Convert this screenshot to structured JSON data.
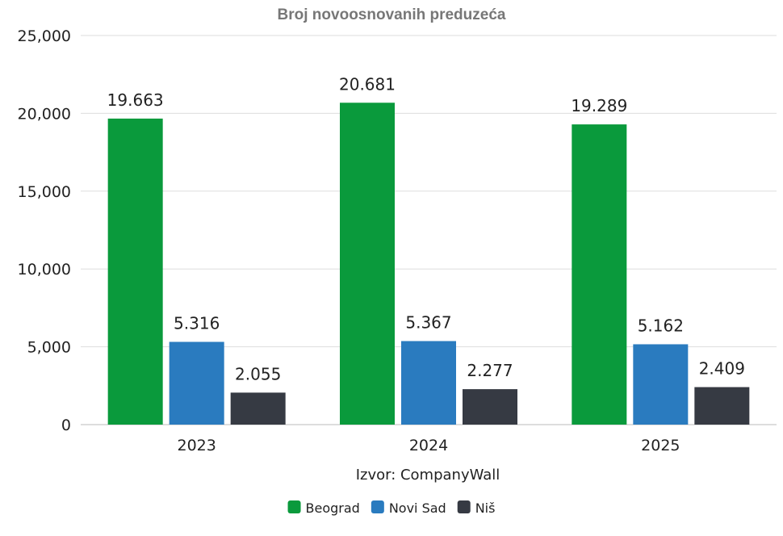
{
  "chart_data": {
    "type": "bar",
    "title": "Broj novoosnovanih preduzeća",
    "xlabel": "Izvor: CompanyWall",
    "ylabel": "",
    "categories": [
      "2023",
      "2024",
      "2025"
    ],
    "ylim": [
      0,
      25000
    ],
    "yticks": [
      0,
      5000,
      10000,
      15000,
      20000,
      25000
    ],
    "ytick_labels": [
      "0",
      "5,000",
      "10,000",
      "15,000",
      "20,000",
      "25,000"
    ],
    "grid": true,
    "legend_position": "bottom-center",
    "series": [
      {
        "name": "Beograd",
        "color": "#0a9a3c",
        "values": [
          19663,
          20681,
          19289
        ],
        "labels": [
          "19.663",
          "20.681",
          "19.289"
        ]
      },
      {
        "name": "Novi Sad",
        "color": "#2a7bbf",
        "values": [
          5316,
          5367,
          5162
        ],
        "labels": [
          "5.316",
          "5.367",
          "5.162"
        ]
      },
      {
        "name": "Niš",
        "color": "#363a43",
        "values": [
          2055,
          2277,
          2409
        ],
        "labels": [
          "2.055",
          "2.277",
          "2.409"
        ]
      }
    ]
  }
}
